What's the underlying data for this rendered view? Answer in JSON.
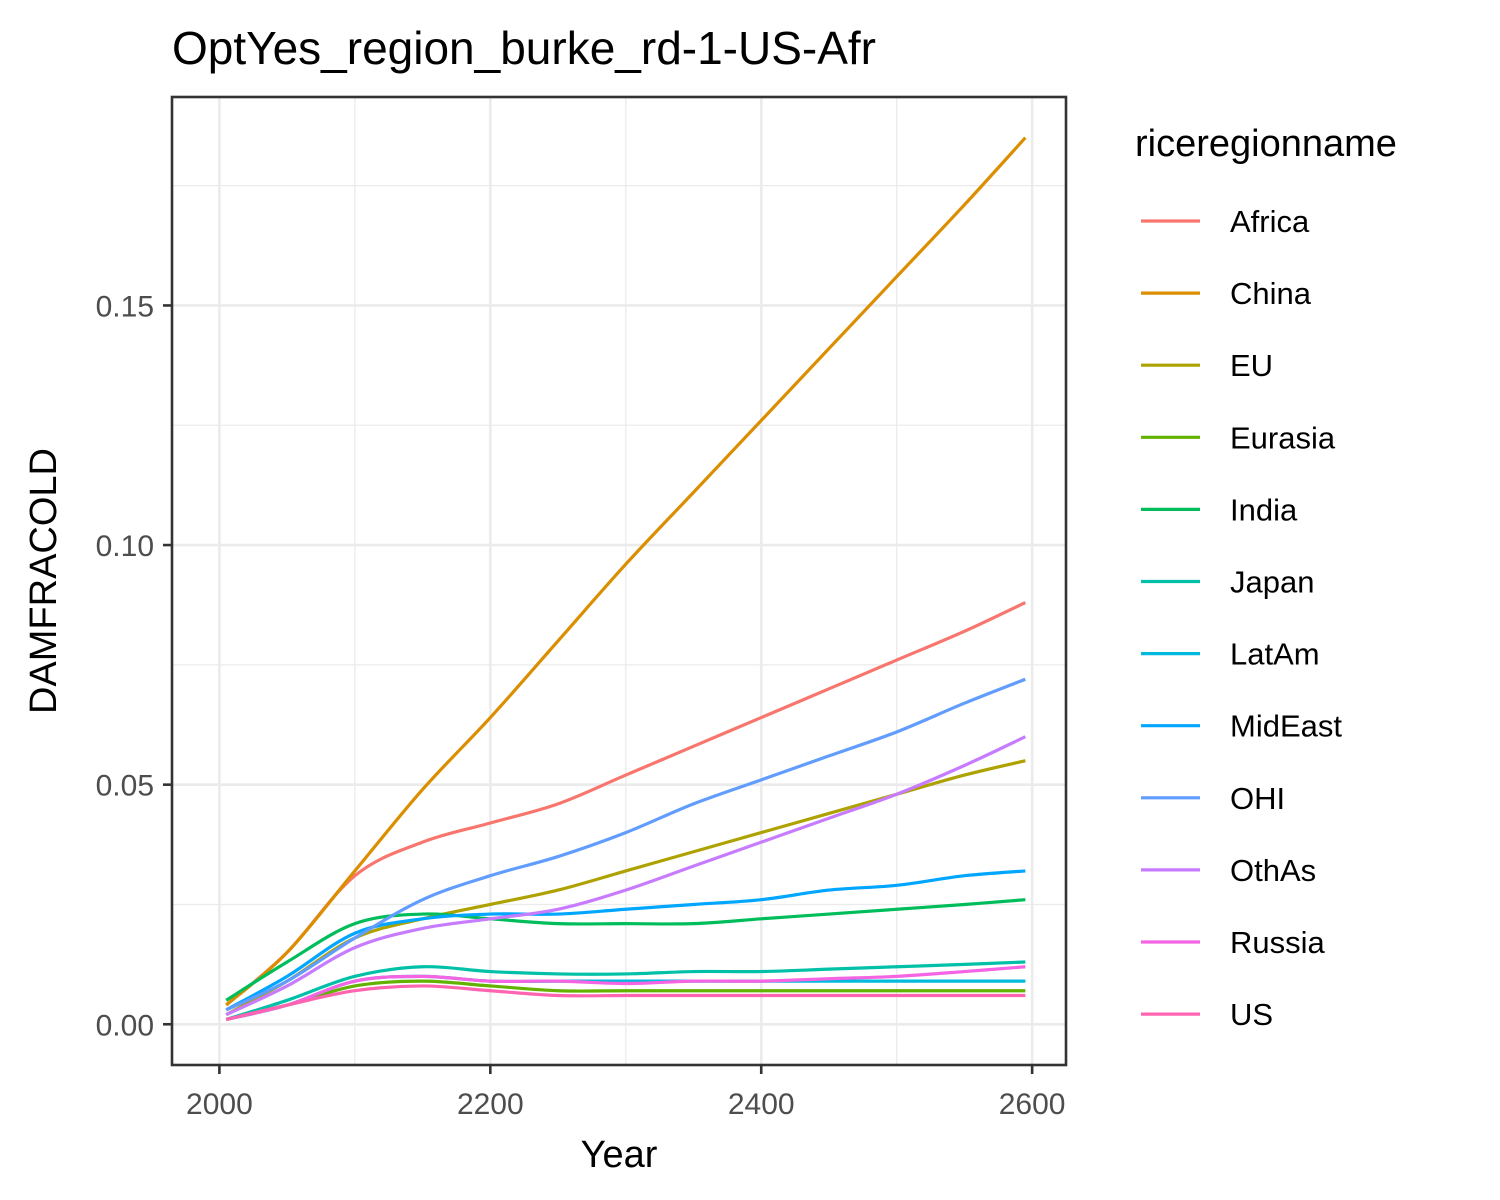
{
  "chart_data": {
    "type": "line",
    "title": "OptYes_region_burke_rd-1-US-Afr",
    "xlabel": "Year",
    "ylabel": "DAMFRACOLD",
    "xlim": [
      1965,
      2625
    ],
    "ylim": [
      -0.0085,
      0.1935
    ],
    "xticks": [
      2000,
      2200,
      2400,
      2600
    ],
    "xtick_labels": [
      "2000",
      "2200",
      "2400",
      "2600"
    ],
    "yticks": [
      0.0,
      0.05,
      0.1,
      0.15
    ],
    "ytick_labels": [
      "0.00",
      "0.05",
      "0.10",
      "0.15"
    ],
    "grid": true,
    "legend": {
      "title": "riceregionname",
      "position": "right"
    },
    "x": [
      2005,
      2050,
      2100,
      2150,
      2200,
      2250,
      2300,
      2350,
      2400,
      2450,
      2500,
      2550,
      2595
    ],
    "series": [
      {
        "name": "Africa",
        "color": "#F8766D",
        "values": [
          0.004,
          0.015,
          0.031,
          0.038,
          0.042,
          0.046,
          0.052,
          0.058,
          0.064,
          0.07,
          0.076,
          0.082,
          0.088
        ]
      },
      {
        "name": "China",
        "color": "#DB8E00",
        "values": [
          0.004,
          0.015,
          0.032,
          0.049,
          0.064,
          0.08,
          0.096,
          0.111,
          0.126,
          0.141,
          0.156,
          0.171,
          0.185
        ]
      },
      {
        "name": "EU",
        "color": "#AEA200",
        "values": [
          0.002,
          0.009,
          0.018,
          0.022,
          0.025,
          0.028,
          0.032,
          0.036,
          0.04,
          0.044,
          0.048,
          0.052,
          0.055
        ]
      },
      {
        "name": "Eurasia",
        "color": "#64B200",
        "values": [
          0.001,
          0.004,
          0.008,
          0.009,
          0.008,
          0.007,
          0.007,
          0.007,
          0.007,
          0.007,
          0.007,
          0.007,
          0.007
        ]
      },
      {
        "name": "India",
        "color": "#00BD5C",
        "values": [
          0.005,
          0.013,
          0.021,
          0.023,
          0.022,
          0.021,
          0.021,
          0.021,
          0.022,
          0.023,
          0.024,
          0.025,
          0.026
        ]
      },
      {
        "name": "Japan",
        "color": "#00C1A7",
        "values": [
          0.001,
          0.005,
          0.01,
          0.012,
          0.011,
          0.0105,
          0.0105,
          0.011,
          0.011,
          0.0115,
          0.012,
          0.0125,
          0.013
        ]
      },
      {
        "name": "LatAm",
        "color": "#00BADE",
        "values": [
          0.001,
          0.004,
          0.009,
          0.01,
          0.009,
          0.009,
          0.009,
          0.009,
          0.009,
          0.009,
          0.009,
          0.009,
          0.009
        ]
      },
      {
        "name": "MidEast",
        "color": "#00A6FF",
        "values": [
          0.003,
          0.01,
          0.019,
          0.022,
          0.023,
          0.023,
          0.024,
          0.025,
          0.026,
          0.028,
          0.029,
          0.031,
          0.032
        ]
      },
      {
        "name": "OHI",
        "color": "#619CFF",
        "values": [
          0.003,
          0.009,
          0.018,
          0.026,
          0.031,
          0.035,
          0.04,
          0.046,
          0.051,
          0.056,
          0.061,
          0.067,
          0.072
        ]
      },
      {
        "name": "OthAs",
        "color": "#C77CFF",
        "values": [
          0.002,
          0.008,
          0.016,
          0.02,
          0.022,
          0.024,
          0.028,
          0.033,
          0.038,
          0.043,
          0.048,
          0.054,
          0.06
        ]
      },
      {
        "name": "Russia",
        "color": "#F564E3",
        "values": [
          0.001,
          0.004,
          0.009,
          0.01,
          0.009,
          0.009,
          0.0085,
          0.009,
          0.009,
          0.0095,
          0.01,
          0.011,
          0.012
        ]
      },
      {
        "name": "US",
        "color": "#FF64B0",
        "values": [
          0.001,
          0.004,
          0.007,
          0.008,
          0.007,
          0.006,
          0.006,
          0.006,
          0.006,
          0.006,
          0.006,
          0.006,
          0.006
        ]
      }
    ]
  }
}
